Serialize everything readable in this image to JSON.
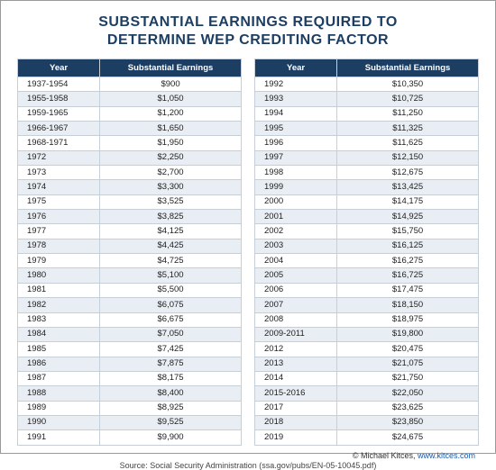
{
  "title_line1": "SUBSTANTIAL EARNINGS REQUIRED TO",
  "title_line2": "DETERMINE WEP CREDITING FACTOR",
  "columns": {
    "year": "Year",
    "earnings": "Substantial Earnings"
  },
  "left": [
    {
      "year": "1937-1954",
      "earnings": "$900"
    },
    {
      "year": "1955-1958",
      "earnings": "$1,050"
    },
    {
      "year": "1959-1965",
      "earnings": "$1,200"
    },
    {
      "year": "1966-1967",
      "earnings": "$1,650"
    },
    {
      "year": "1968-1971",
      "earnings": "$1,950"
    },
    {
      "year": "1972",
      "earnings": "$2,250"
    },
    {
      "year": "1973",
      "earnings": "$2,700"
    },
    {
      "year": "1974",
      "earnings": "$3,300"
    },
    {
      "year": "1975",
      "earnings": "$3,525"
    },
    {
      "year": "1976",
      "earnings": "$3,825"
    },
    {
      "year": "1977",
      "earnings": "$4,125"
    },
    {
      "year": "1978",
      "earnings": "$4,425"
    },
    {
      "year": "1979",
      "earnings": "$4,725"
    },
    {
      "year": "1980",
      "earnings": "$5,100"
    },
    {
      "year": "1981",
      "earnings": "$5,500"
    },
    {
      "year": "1982",
      "earnings": "$6,075"
    },
    {
      "year": "1983",
      "earnings": "$6,675"
    },
    {
      "year": "1984",
      "earnings": "$7,050"
    },
    {
      "year": "1985",
      "earnings": "$7,425"
    },
    {
      "year": "1986",
      "earnings": "$7,875"
    },
    {
      "year": "1987",
      "earnings": "$8,175"
    },
    {
      "year": "1988",
      "earnings": "$8,400"
    },
    {
      "year": "1989",
      "earnings": "$8,925"
    },
    {
      "year": "1990",
      "earnings": "$9,525"
    },
    {
      "year": "1991",
      "earnings": "$9,900"
    }
  ],
  "right": [
    {
      "year": "1992",
      "earnings": "$10,350"
    },
    {
      "year": "1993",
      "earnings": "$10,725"
    },
    {
      "year": "1994",
      "earnings": "$11,250"
    },
    {
      "year": "1995",
      "earnings": "$11,325"
    },
    {
      "year": "1996",
      "earnings": "$11,625"
    },
    {
      "year": "1997",
      "earnings": "$12,150"
    },
    {
      "year": "1998",
      "earnings": "$12,675"
    },
    {
      "year": "1999",
      "earnings": "$13,425"
    },
    {
      "year": "2000",
      "earnings": "$14,175"
    },
    {
      "year": "2001",
      "earnings": "$14,925"
    },
    {
      "year": "2002",
      "earnings": "$15,750"
    },
    {
      "year": "2003",
      "earnings": "$16,125"
    },
    {
      "year": "2004",
      "earnings": "$16,275"
    },
    {
      "year": "2005",
      "earnings": "$16,725"
    },
    {
      "year": "2006",
      "earnings": "$17,475"
    },
    {
      "year": "2007",
      "earnings": "$18,150"
    },
    {
      "year": "2008",
      "earnings": "$18,975"
    },
    {
      "year": "2009-2011",
      "earnings": "$19,800"
    },
    {
      "year": "2012",
      "earnings": "$20,475"
    },
    {
      "year": "2013",
      "earnings": "$21,075"
    },
    {
      "year": "2014",
      "earnings": "$21,750"
    },
    {
      "year": "2015-2016",
      "earnings": "$22,050"
    },
    {
      "year": "2017",
      "earnings": "$23,625"
    },
    {
      "year": "2018",
      "earnings": "$23,850"
    },
    {
      "year": "2019",
      "earnings": "$24,675"
    }
  ],
  "credit_text": "© Michael Kitces, ",
  "credit_link": "www.kitces.com",
  "source_text": "Source: Social Security Administration (ssa.gov/pubs/EN-05-10045.pdf)"
}
